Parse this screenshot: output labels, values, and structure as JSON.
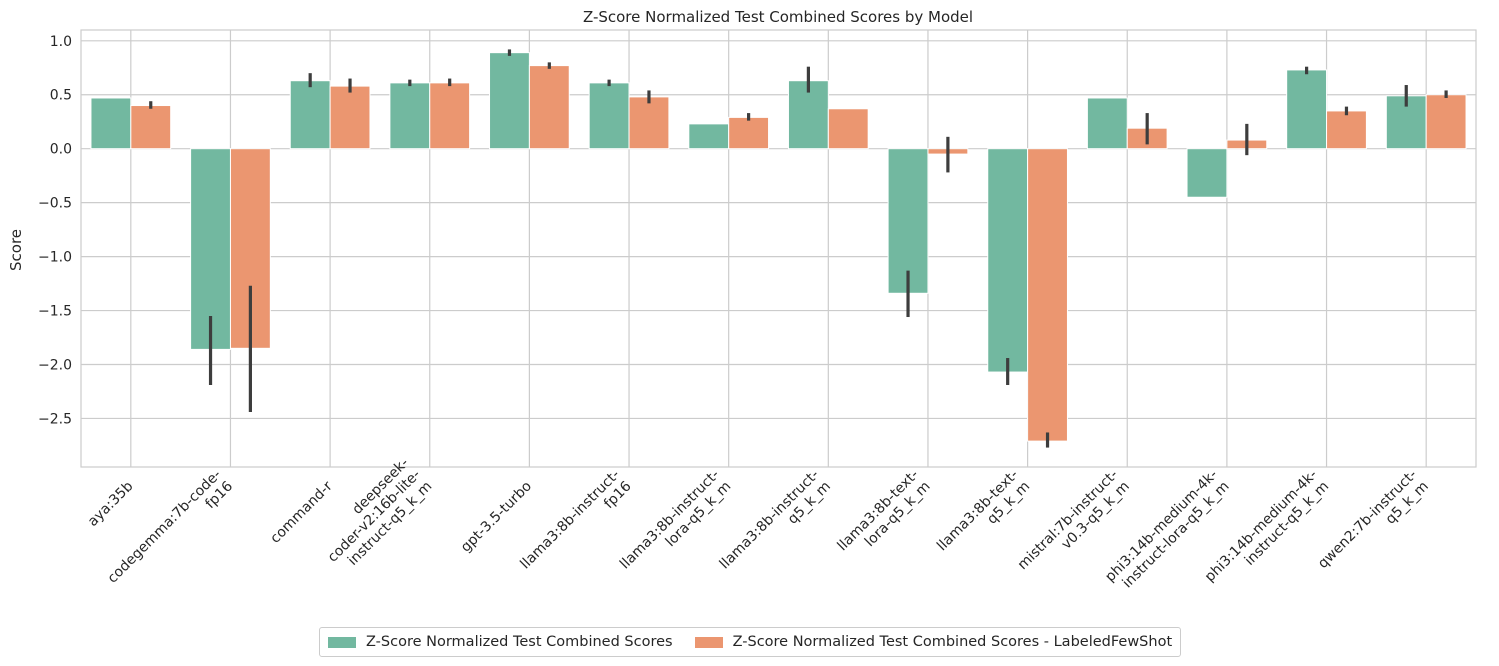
{
  "chart_data": {
    "type": "bar",
    "title": "Z-Score Normalized Test Combined Scores by Model",
    "xlabel": "",
    "ylabel": "Score",
    "ylim": [
      -2.95,
      1.1
    ],
    "yticks": [
      1.0,
      0.5,
      0.0,
      -0.5,
      -1.0,
      -1.5,
      -2.0,
      -2.5
    ],
    "ytick_labels": [
      "1.0",
      "0.5",
      "0.0",
      "−0.5",
      "−1.0",
      "−1.5",
      "−2.0",
      "−2.5"
    ],
    "grid": true,
    "legend_position": "bottom-center",
    "categories": [
      "aya:35b",
      "codegemma:7b-code-fp16",
      "command-r",
      "deepseek-coder-v2:16b-lite-instruct-q5_k_m",
      "gpt-3.5-turbo",
      "llama3:8b-instruct-fp16",
      "llama3:8b-instruct-lora-q5_k_m",
      "llama3:8b-instruct-q5_k_m",
      "llama3:8b-text-lora-q5_k_m",
      "llama3:8b-text-q5_k_m",
      "mistral:7b-instruct-v0.3-q5_k_m",
      "phi3:14b-medium-4k-instruct-lora-q5_k_m",
      "phi3:14b-medium-4k-instruct-q5_k_m",
      "qwen2:7b-instruct-q5_k_m"
    ],
    "category_tick_lines": [
      [
        "aya:35b"
      ],
      [
        "codegemma:7b-code-",
        "fp16"
      ],
      [
        "command-r"
      ],
      [
        "deepseek-",
        "coder-v2:16b-lite-",
        "instruct-q5_k_m"
      ],
      [
        "gpt-3.5-turbo"
      ],
      [
        "llama3:8b-instruct-",
        "fp16"
      ],
      [
        "llama3:8b-instruct-",
        "lora-q5_k_m"
      ],
      [
        "llama3:8b-instruct-",
        "q5_k_m"
      ],
      [
        "llama3:8b-text-",
        "lora-q5_k_m"
      ],
      [
        "llama3:8b-text-",
        "q5_k_m"
      ],
      [
        "mistral:7b-instruct-",
        "v0.3-q5_k_m"
      ],
      [
        "phi3:14b-medium-4k-",
        "instruct-lora-q5_k_m"
      ],
      [
        "phi3:14b-medium-4k-",
        "instruct-q5_k_m"
      ],
      [
        "qwen2:7b-instruct-",
        "q5_k_m"
      ]
    ],
    "series": [
      {
        "name": "Z-Score Normalized Test Combined Scores",
        "color": "#72b8a0",
        "values": [
          0.47,
          -1.86,
          0.63,
          0.61,
          0.89,
          0.61,
          0.23,
          0.63,
          -1.34,
          -2.07,
          0.47,
          -0.45,
          0.73,
          0.49
        ],
        "error_low": [
          null,
          -2.19,
          0.57,
          0.58,
          0.86,
          0.58,
          null,
          0.52,
          -1.56,
          -2.19,
          null,
          null,
          0.69,
          0.39
        ],
        "error_high": [
          null,
          -1.55,
          0.7,
          0.64,
          0.92,
          0.64,
          null,
          0.76,
          -1.13,
          -1.94,
          null,
          null,
          0.76,
          0.59
        ]
      },
      {
        "name": "Z-Score Normalized Test Combined Scores - LabeledFewShot",
        "color": "#eb9670",
        "values": [
          0.4,
          -1.85,
          0.58,
          0.61,
          0.77,
          0.48,
          0.29,
          0.37,
          -0.05,
          -2.71,
          0.19,
          0.08,
          0.35,
          0.5
        ],
        "error_low": [
          0.37,
          -2.44,
          0.52,
          0.58,
          0.74,
          0.42,
          0.26,
          null,
          -0.22,
          -2.77,
          0.04,
          -0.06,
          0.31,
          0.47
        ],
        "error_high": [
          0.44,
          -1.27,
          0.65,
          0.65,
          0.8,
          0.54,
          0.33,
          null,
          0.11,
          -2.63,
          0.33,
          0.23,
          0.39,
          0.54
        ]
      }
    ]
  }
}
